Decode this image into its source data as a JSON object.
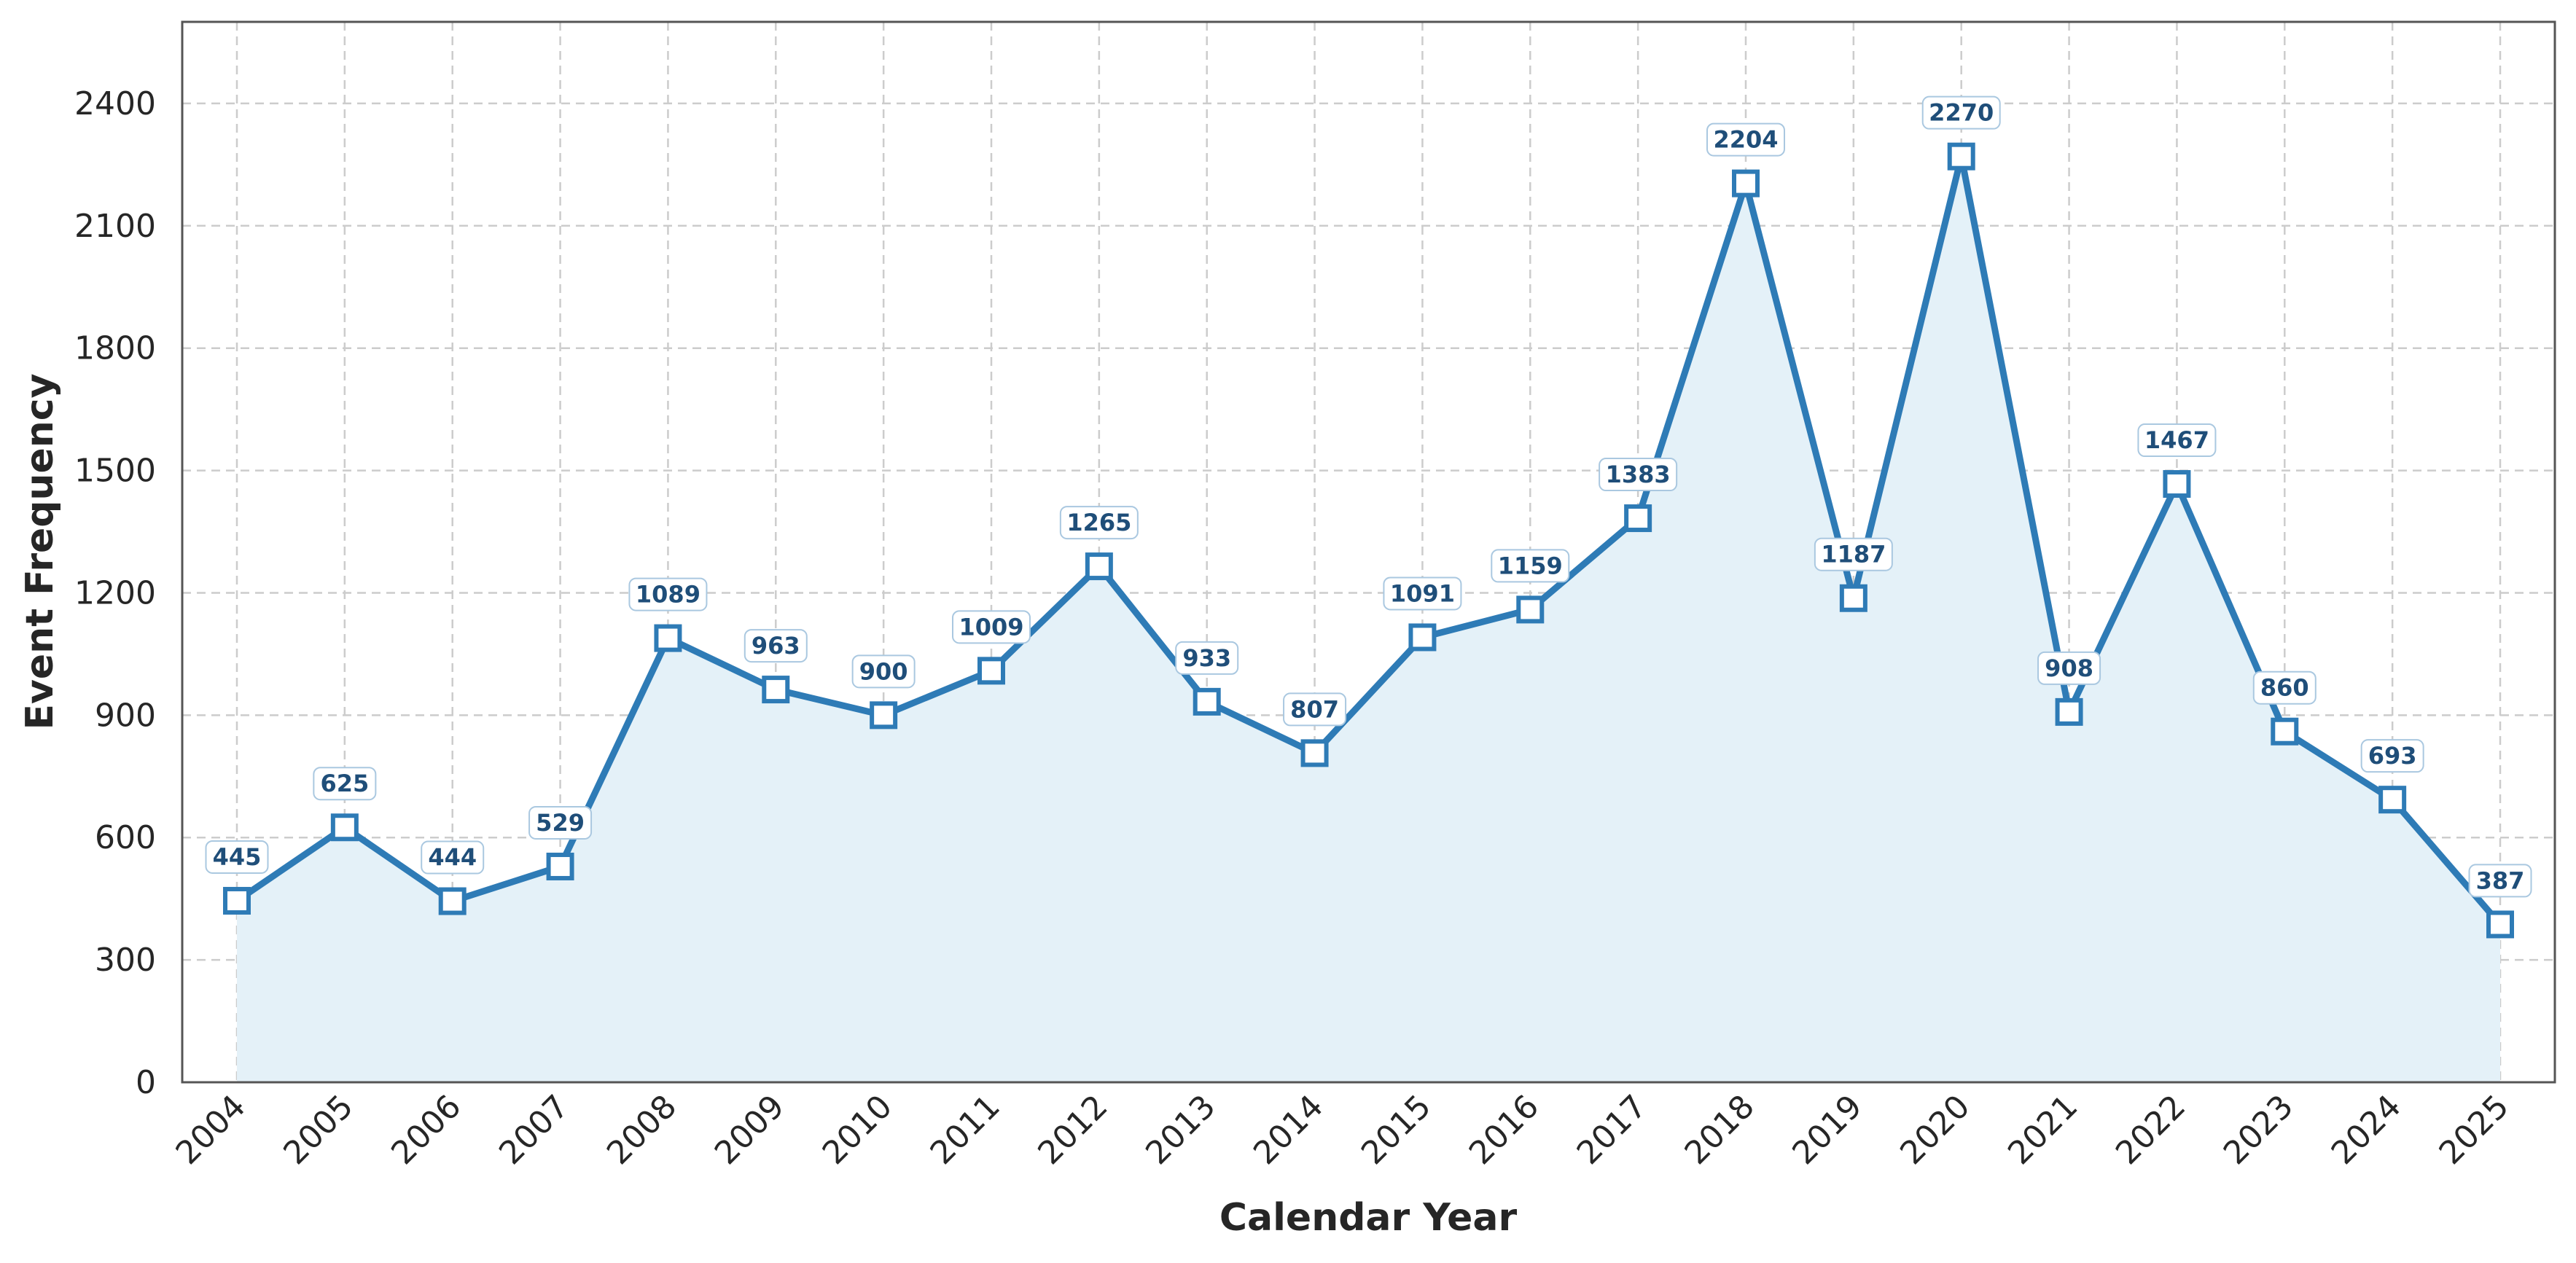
{
  "chart_data": {
    "type": "line",
    "title": "",
    "xlabel": "Calendar Year",
    "ylabel": "Event Frequency",
    "x": [
      "2004",
      "2005",
      "2006",
      "2007",
      "2008",
      "2009",
      "2010",
      "2011",
      "2012",
      "2013",
      "2014",
      "2015",
      "2016",
      "2017",
      "2018",
      "2019",
      "2020",
      "2021",
      "2022",
      "2023",
      "2024",
      "2025"
    ],
    "series": [
      {
        "values": [
          445,
          625,
          444,
          529,
          1089,
          963,
          900,
          1009,
          1265,
          933,
          807,
          1091,
          1159,
          1383,
          2204,
          1187,
          2270,
          908,
          1467,
          860,
          693,
          387
        ]
      }
    ],
    "ylim": [
      0,
      2600
    ],
    "yticks": [
      0,
      300,
      600,
      900,
      1200,
      1500,
      1800,
      2100,
      2400
    ],
    "grid": true,
    "area_fill": true,
    "data_labels": true,
    "marker": "square",
    "colors": {
      "line": "#2e7bb6",
      "fill": "#e4f1f8",
      "marker_face": "#ffffff",
      "label_text": "#1f4e79",
      "grid": "#cccccc"
    }
  }
}
